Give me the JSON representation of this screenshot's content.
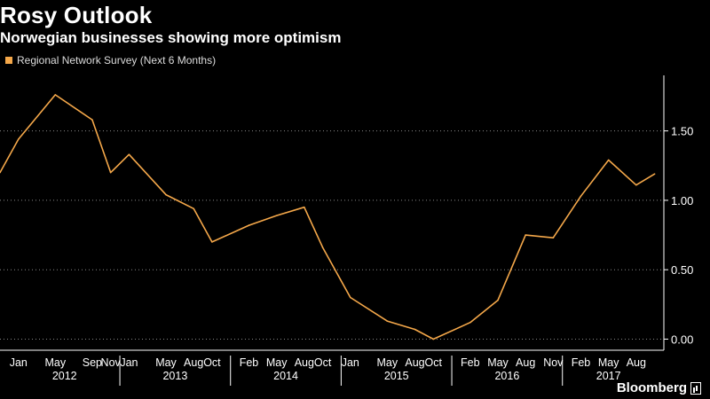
{
  "title": "Rosy Outlook",
  "subtitle": "Norwegian businesses showing more optimism",
  "brand": "Bloomberg",
  "colors": {
    "line": "#f5a84a",
    "background": "#000000",
    "grid": "#888888",
    "text": "#ffffff"
  },
  "chart_data": {
    "type": "line",
    "series": [
      {
        "name": "Regional Network Survey (Next 6 Months)",
        "x": [
          "2011-11",
          "2012-01",
          "2012-05",
          "2012-09",
          "2012-11",
          "2013-01",
          "2013-05",
          "2013-08",
          "2013-10",
          "2014-02",
          "2014-05",
          "2014-08",
          "2014-10",
          "2015-01",
          "2015-05",
          "2015-08",
          "2015-10",
          "2016-02",
          "2016-05",
          "2016-08",
          "2016-11",
          "2017-02",
          "2017-05",
          "2017-08",
          "2017-10"
        ],
        "values": [
          1.2,
          1.44,
          1.76,
          1.58,
          1.2,
          1.33,
          1.04,
          0.94,
          0.7,
          0.82,
          0.89,
          0.95,
          0.66,
          0.3,
          0.13,
          0.07,
          0.0,
          0.12,
          0.28,
          0.75,
          0.73,
          1.03,
          1.29,
          1.11,
          1.19
        ]
      }
    ],
    "x_ticks": [
      {
        "label": "Jan",
        "date": "2012-01"
      },
      {
        "label": "May",
        "date": "2012-05"
      },
      {
        "label": "Sep",
        "date": "2012-09"
      },
      {
        "label": "Nov",
        "date": "2012-11"
      },
      {
        "label": "Jan",
        "date": "2013-01"
      },
      {
        "label": "May",
        "date": "2013-05"
      },
      {
        "label": "Aug",
        "date": "2013-08"
      },
      {
        "label": "Oct",
        "date": "2013-10"
      },
      {
        "label": "Feb",
        "date": "2014-02"
      },
      {
        "label": "May",
        "date": "2014-05"
      },
      {
        "label": "Aug",
        "date": "2014-08"
      },
      {
        "label": "Oct",
        "date": "2014-10"
      },
      {
        "label": "Jan",
        "date": "2015-01"
      },
      {
        "label": "May",
        "date": "2015-05"
      },
      {
        "label": "Aug",
        "date": "2015-08"
      },
      {
        "label": "Oct",
        "date": "2015-10"
      },
      {
        "label": "Feb",
        "date": "2016-02"
      },
      {
        "label": "May",
        "date": "2016-05"
      },
      {
        "label": "Aug",
        "date": "2016-08"
      },
      {
        "label": "Nov",
        "date": "2016-11"
      },
      {
        "label": "Feb",
        "date": "2017-02"
      },
      {
        "label": "May",
        "date": "2017-05"
      },
      {
        "label": "Aug",
        "date": "2017-08"
      }
    ],
    "year_labels": [
      {
        "label": "2012",
        "date": "2012-06"
      },
      {
        "label": "2013",
        "date": "2013-06"
      },
      {
        "label": "2014",
        "date": "2014-06"
      },
      {
        "label": "2015",
        "date": "2015-06"
      },
      {
        "label": "2016",
        "date": "2016-06"
      },
      {
        "label": "2017",
        "date": "2017-05"
      }
    ],
    "year_separators": [
      "2012-12",
      "2013-12",
      "2014-12",
      "2015-12",
      "2016-12"
    ],
    "y_ticks": [
      "0.00",
      "0.50",
      "1.00",
      "1.50"
    ],
    "y_tick_values": [
      0,
      0.5,
      1.0,
      1.5
    ],
    "xlim": [
      "2011-11",
      "2017-11"
    ],
    "ylim": [
      -0.08,
      1.9
    ],
    "y_axis_position": "right",
    "grid": true,
    "legend_position": "top-left"
  }
}
